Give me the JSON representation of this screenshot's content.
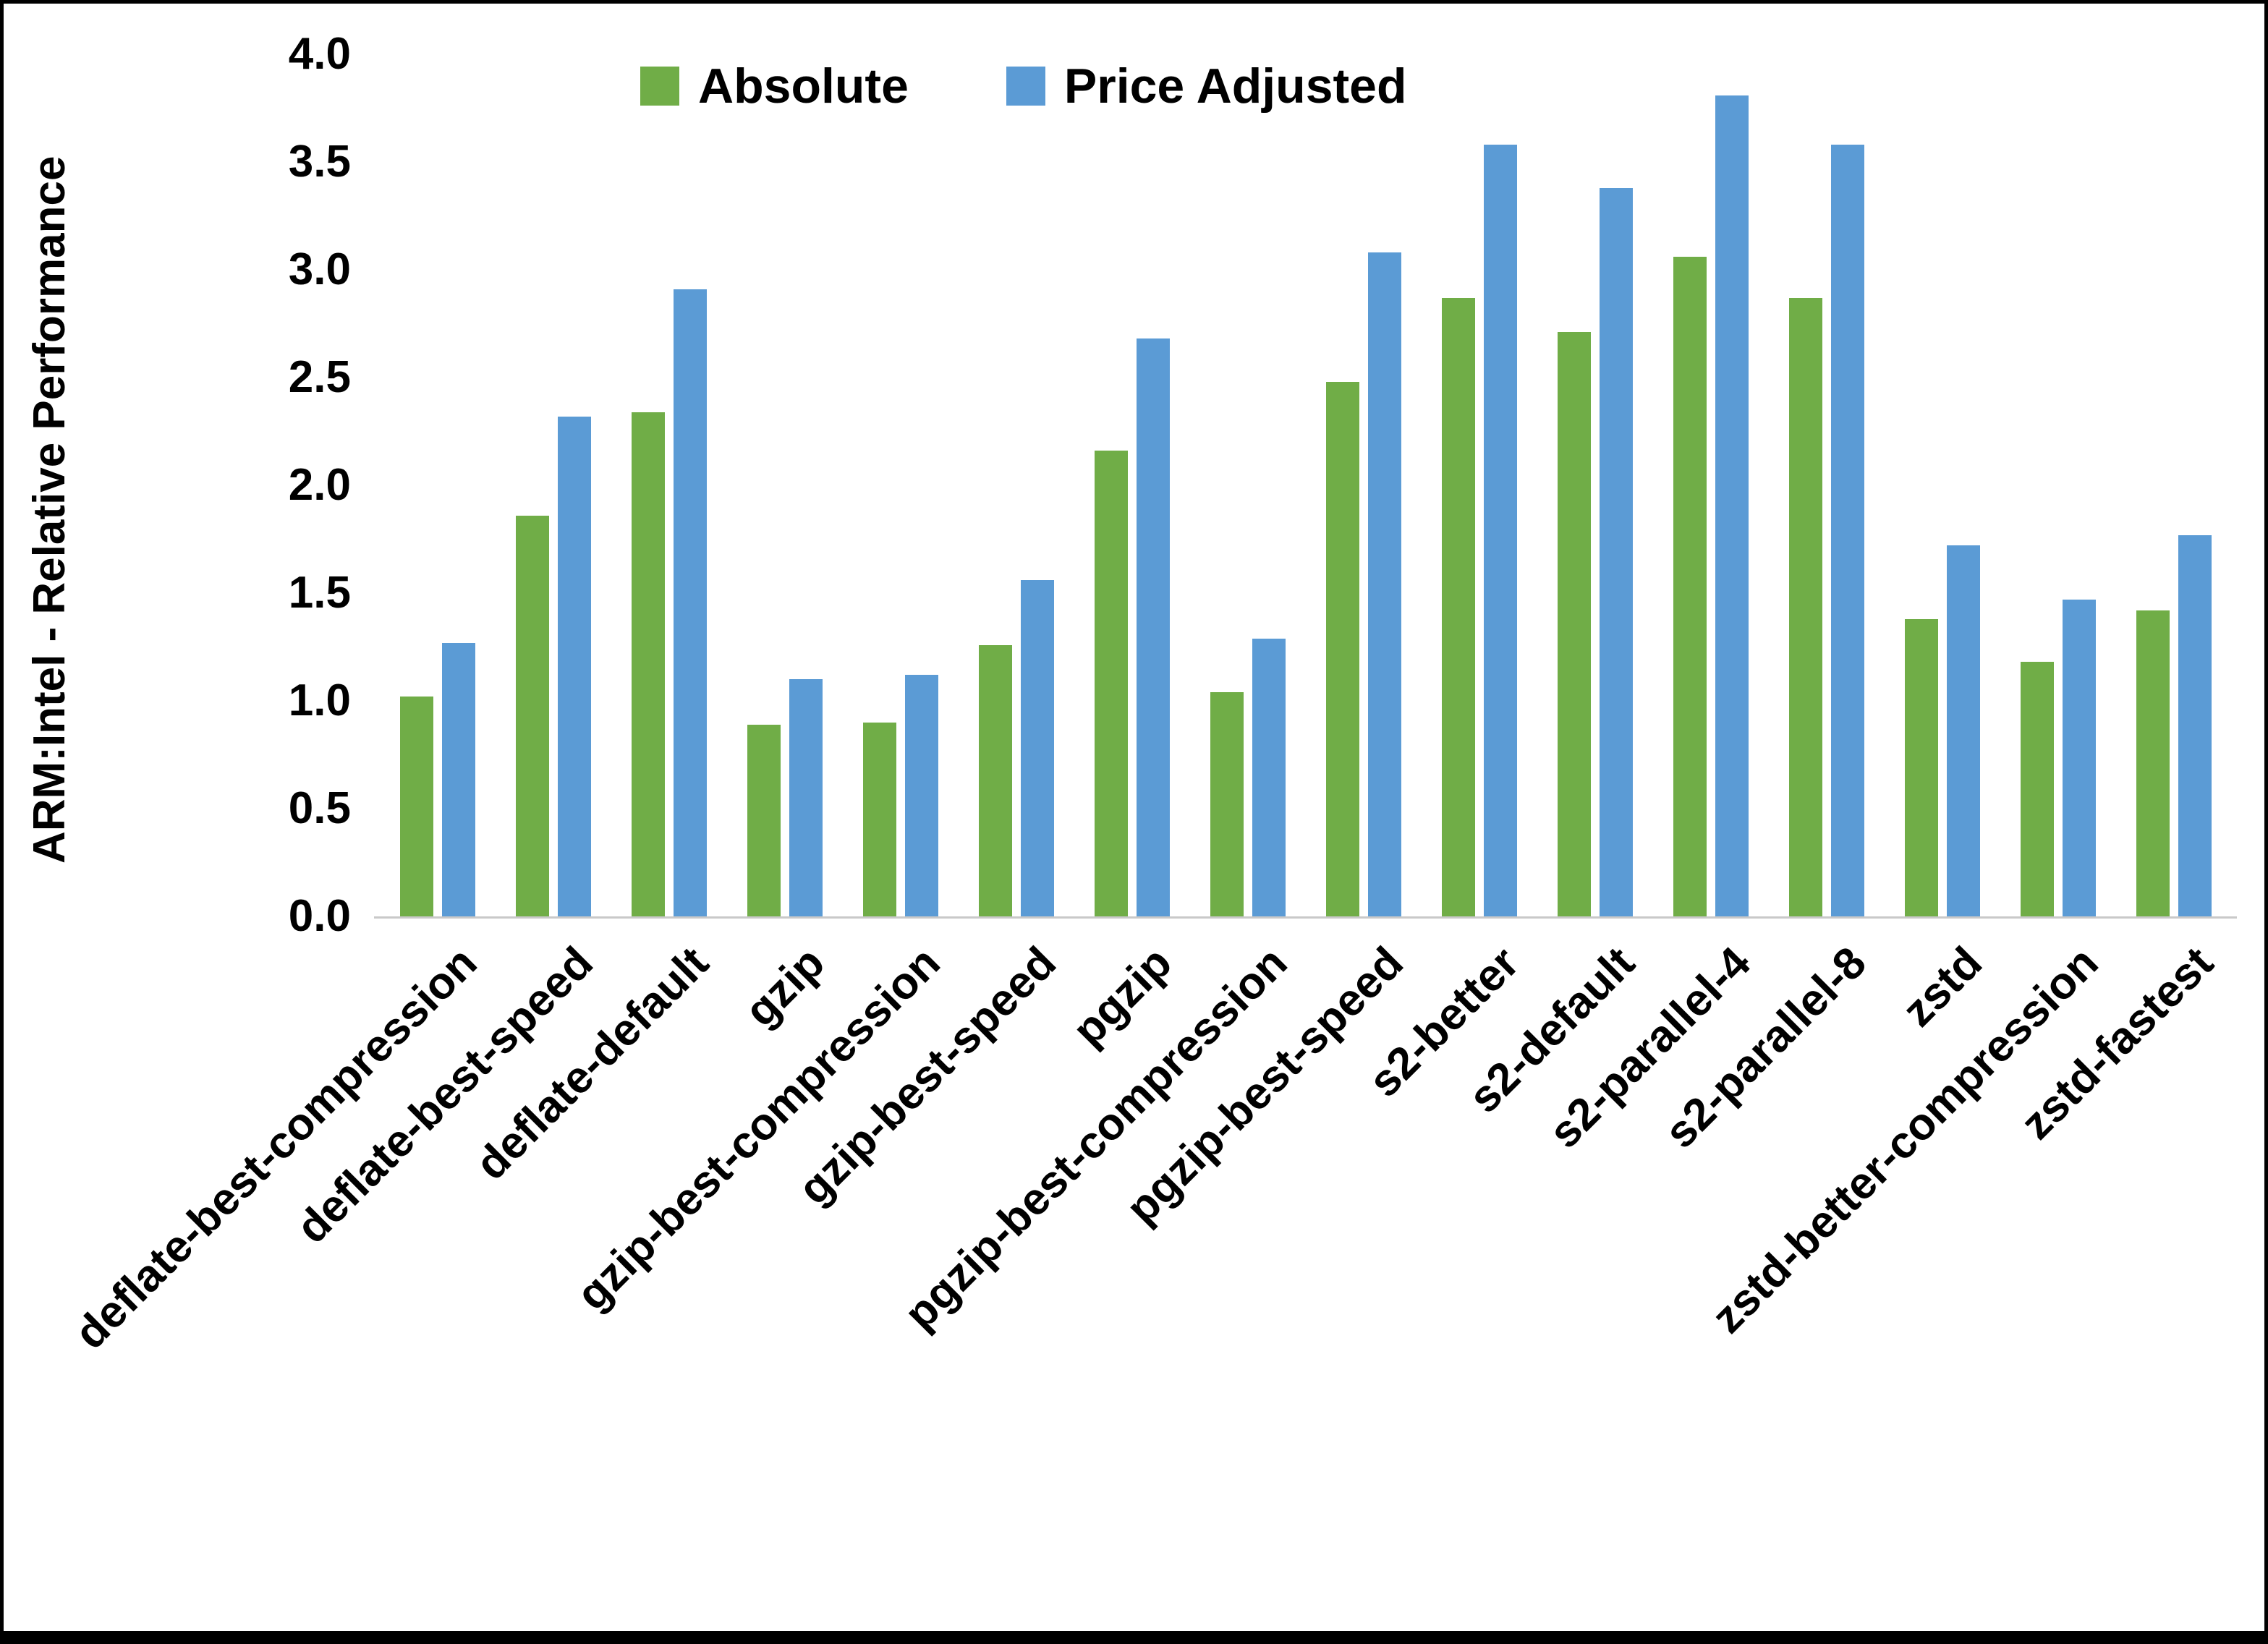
{
  "chart_data": {
    "type": "bar",
    "title": "",
    "ylabel": "ARM:Intel - Relative Performance",
    "xlabel": "",
    "ylim": [
      0.0,
      4.0
    ],
    "grid": false,
    "legend_position": "top-inside",
    "yticks": [
      {
        "value": 0.0,
        "label": "0.0"
      },
      {
        "value": 0.5,
        "label": "0.5"
      },
      {
        "value": 1.0,
        "label": "1.0"
      },
      {
        "value": 1.5,
        "label": "1.5"
      },
      {
        "value": 2.0,
        "label": "2.0"
      },
      {
        "value": 2.5,
        "label": "2.5"
      },
      {
        "value": 3.0,
        "label": "3.0"
      },
      {
        "value": 3.5,
        "label": "3.5"
      },
      {
        "value": 4.0,
        "label": "4.0"
      }
    ],
    "categories": [
      "deflate-best-compression",
      "deflate-best-speed",
      "deflate-default",
      "gzip",
      "gzip-best-compression",
      "gzip-best-speed",
      "pgzip",
      "pgzip-best-compression",
      "pgzip-best-speed",
      "s2-better",
      "s2-default",
      "s2-parallel-4",
      "s2-parallel-8",
      "zstd",
      "zstd-better-compression",
      "zstd-fastest"
    ],
    "series": [
      {
        "name": "Absolute",
        "color": "#70AD47",
        "values": [
          1.02,
          1.86,
          2.34,
          0.89,
          0.9,
          1.26,
          2.16,
          1.04,
          2.48,
          2.87,
          2.71,
          3.06,
          2.87,
          1.38,
          1.18,
          1.42
        ]
      },
      {
        "name": "Price Adjusted",
        "color": "#5B9BD5",
        "values": [
          1.27,
          2.32,
          2.91,
          1.1,
          1.12,
          1.56,
          2.68,
          1.29,
          3.08,
          3.58,
          3.38,
          3.81,
          3.58,
          1.72,
          1.47,
          1.77
        ]
      }
    ]
  }
}
